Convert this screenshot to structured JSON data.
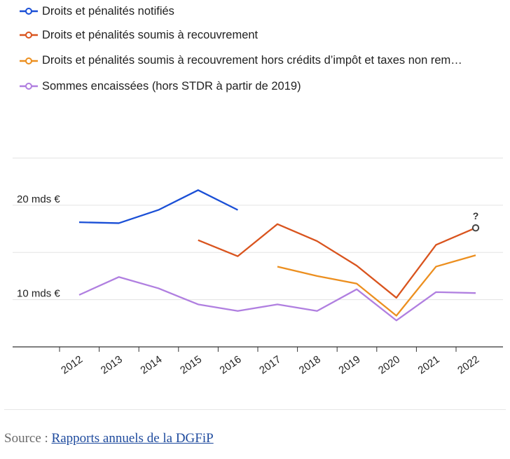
{
  "chart_data": {
    "type": "line",
    "categories": [
      "2012",
      "2013",
      "2014",
      "2015",
      "2016",
      "2017",
      "2018",
      "2019",
      "2020",
      "2021",
      "2022"
    ],
    "y_tick_labels": [
      {
        "value": 20,
        "label": "20 mds €"
      },
      {
        "value": 10,
        "label": "10 mds €"
      }
    ],
    "y_gridlines": [
      5,
      10,
      15,
      20,
      25
    ],
    "ylim": [
      5,
      26
    ],
    "grid": true,
    "legend_placement": "top-left",
    "series": [
      {
        "name": "Droits et pénalités notifiés",
        "color": "#1a4fd6",
        "values": [
          18.2,
          18.1,
          19.5,
          21.6,
          19.5,
          null,
          null,
          null,
          null,
          null,
          null
        ]
      },
      {
        "name": "Droits et pénalités soumis à recouvrement",
        "color": "#d9541e",
        "values": [
          null,
          null,
          null,
          16.3,
          14.6,
          18.0,
          16.2,
          13.6,
          10.2,
          15.8,
          17.6
        ]
      },
      {
        "name": "Droits et pénalités soumis à recouvrement hors crédits d’impôt et taxes non rem…",
        "color": "#ec8f1f",
        "values": [
          null,
          null,
          null,
          null,
          null,
          13.5,
          12.5,
          11.7,
          8.3,
          13.5,
          14.7
        ]
      },
      {
        "name": "Sommes encaissées (hors STDR à partir de 2019)",
        "color": "#b07fe0",
        "values": [
          10.5,
          12.4,
          11.2,
          9.5,
          8.8,
          9.5,
          8.8,
          11.1,
          7.8,
          10.8,
          10.7
        ]
      }
    ],
    "annotation": {
      "text": "?",
      "series_index": 1,
      "category": "2022"
    }
  },
  "source": {
    "prefix": "Source :",
    "link_text": "Rapports annuels de la DGFiP"
  }
}
